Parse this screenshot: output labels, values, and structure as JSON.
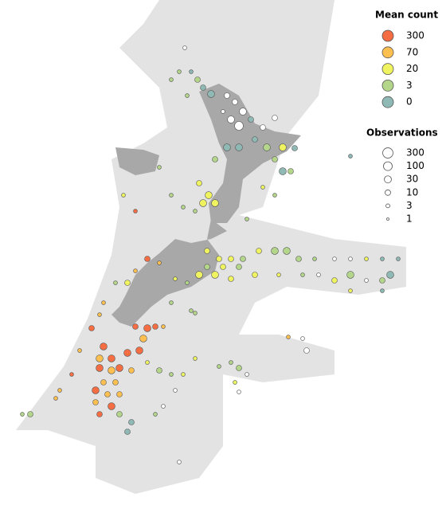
{
  "map": {
    "legend": {
      "mean_title": "Mean count",
      "mean_levels": [
        {
          "value": 300,
          "color": "#f46d43"
        },
        {
          "value": 70,
          "color": "#fdbf4f"
        },
        {
          "value": 20,
          "color": "#eef35f"
        },
        {
          "value": 3,
          "color": "#b3d68a"
        },
        {
          "value": 0,
          "color": "#8fb9b5"
        }
      ],
      "obs_title": "Observations",
      "obs_levels": [
        300,
        100,
        30,
        10,
        3,
        1
      ]
    },
    "points": [
      [
        285,
        120,
        null,
        10
      ],
      [
        295,
        128,
        null,
        10
      ],
      [
        305,
        140,
        null,
        30
      ],
      [
        290,
        150,
        null,
        30
      ],
      [
        300,
        158,
        null,
        100
      ],
      [
        315,
        150,
        0,
        10
      ],
      [
        330,
        160,
        null,
        10
      ],
      [
        345,
        148,
        null,
        10
      ],
      [
        280,
        140,
        null,
        3
      ],
      [
        240,
        90,
        0,
        3
      ],
      [
        232,
        60,
        null,
        3
      ],
      [
        255,
        110,
        0,
        10
      ],
      [
        265,
        118,
        0,
        30
      ],
      [
        248,
        100,
        3,
        10
      ],
      [
        225,
        90,
        3,
        3
      ],
      [
        215,
        100,
        3,
        3
      ],
      [
        235,
        120,
        3,
        3
      ],
      [
        320,
        175,
        0,
        10
      ],
      [
        335,
        185,
        3,
        30
      ],
      [
        355,
        185,
        20,
        30
      ],
      [
        370,
        186,
        0,
        10
      ],
      [
        345,
        200,
        3,
        10
      ],
      [
        355,
        215,
        0,
        30
      ],
      [
        365,
        215,
        3,
        10
      ],
      [
        300,
        185,
        0,
        30
      ],
      [
        285,
        185,
        0,
        30
      ],
      [
        270,
        200,
        3,
        10
      ],
      [
        440,
        196,
        0,
        3
      ],
      [
        250,
        230,
        20,
        10
      ],
      [
        262,
        245,
        20,
        30
      ],
      [
        270,
        255,
        20,
        30
      ],
      [
        255,
        255,
        20,
        30
      ],
      [
        245,
        265,
        3,
        3
      ],
      [
        230,
        260,
        3,
        3
      ],
      [
        215,
        245,
        3,
        3
      ],
      [
        200,
        210,
        3,
        3
      ],
      [
        155,
        245,
        20,
        3
      ],
      [
        170,
        265,
        300,
        3
      ],
      [
        330,
        235,
        20,
        3
      ],
      [
        345,
        245,
        3,
        3
      ],
      [
        310,
        275,
        3,
        3
      ],
      [
        260,
        315,
        20,
        10
      ],
      [
        275,
        325,
        20,
        10
      ],
      [
        290,
        325,
        20,
        10
      ],
      [
        305,
        325,
        3,
        10
      ],
      [
        325,
        315,
        20,
        10
      ],
      [
        345,
        315,
        3,
        30
      ],
      [
        360,
        315,
        3,
        30
      ],
      [
        375,
        325,
        3,
        10
      ],
      [
        395,
        325,
        3,
        3
      ],
      [
        420,
        325,
        null,
        3
      ],
      [
        440,
        325,
        null,
        3
      ],
      [
        460,
        325,
        20,
        3
      ],
      [
        480,
        325,
        0,
        3
      ],
      [
        500,
        325,
        0,
        3
      ],
      [
        250,
        345,
        20,
        30
      ],
      [
        270,
        345,
        20,
        30
      ],
      [
        290,
        350,
        20,
        10
      ],
      [
        320,
        345,
        20,
        10
      ],
      [
        350,
        345,
        20,
        3
      ],
      [
        380,
        345,
        3,
        3
      ],
      [
        400,
        345,
        null,
        3
      ],
      [
        420,
        352,
        20,
        10
      ],
      [
        440,
        345,
        3,
        30
      ],
      [
        460,
        352,
        null,
        3
      ],
      [
        480,
        352,
        3,
        10
      ],
      [
        490,
        345,
        0,
        30
      ],
      [
        480,
        365,
        0,
        3
      ],
      [
        440,
        365,
        20,
        3
      ],
      [
        260,
        335,
        3,
        10
      ],
      [
        280,
        335,
        20,
        10
      ],
      [
        300,
        335,
        3,
        10
      ],
      [
        185,
        325,
        300,
        10
      ],
      [
        200,
        330,
        70,
        3
      ],
      [
        170,
        340,
        70,
        3
      ],
      [
        160,
        355,
        20,
        10
      ],
      [
        145,
        355,
        3,
        3
      ],
      [
        130,
        380,
        70,
        3
      ],
      [
        125,
        395,
        70,
        3
      ],
      [
        115,
        412,
        300,
        10
      ],
      [
        170,
        410,
        300,
        10
      ],
      [
        185,
        412,
        300,
        30
      ],
      [
        195,
        410,
        300,
        10
      ],
      [
        205,
        410,
        70,
        3
      ],
      [
        180,
        425,
        70,
        30
      ],
      [
        175,
        440,
        300,
        30
      ],
      [
        160,
        443,
        300,
        30
      ],
      [
        130,
        435,
        300,
        30
      ],
      [
        125,
        450,
        70,
        30
      ],
      [
        140,
        450,
        300,
        30
      ],
      [
        150,
        462,
        300,
        30
      ],
      [
        125,
        462,
        300,
        30
      ],
      [
        140,
        465,
        70,
        30
      ],
      [
        165,
        465,
        70,
        10
      ],
      [
        130,
        480,
        70,
        10
      ],
      [
        145,
        480,
        70,
        10
      ],
      [
        120,
        490,
        300,
        30
      ],
      [
        135,
        495,
        70,
        10
      ],
      [
        150,
        495,
        70,
        10
      ],
      [
        120,
        505,
        70,
        10
      ],
      [
        140,
        510,
        300,
        30
      ],
      [
        125,
        520,
        300,
        10
      ],
      [
        150,
        520,
        3,
        10
      ],
      [
        165,
        530,
        0,
        10
      ],
      [
        160,
        542,
        0,
        10
      ],
      [
        90,
        470,
        300,
        3
      ],
      [
        75,
        490,
        70,
        3
      ],
      [
        70,
        500,
        70,
        3
      ],
      [
        38,
        520,
        3,
        10
      ],
      [
        28,
        520,
        3,
        3
      ],
      [
        100,
        440,
        70,
        3
      ],
      [
        185,
        455,
        20,
        3
      ],
      [
        200,
        465,
        3,
        10
      ],
      [
        215,
        470,
        3,
        3
      ],
      [
        230,
        470,
        20,
        3
      ],
      [
        245,
        450,
        20,
        3
      ],
      [
        275,
        460,
        3,
        3
      ],
      [
        290,
        455,
        3,
        3
      ],
      [
        300,
        462,
        3,
        10
      ],
      [
        295,
        480,
        20,
        3
      ],
      [
        300,
        492,
        null,
        3
      ],
      [
        195,
        520,
        3,
        3
      ],
      [
        205,
        510,
        null,
        3
      ],
      [
        220,
        490,
        null,
        3
      ],
      [
        362,
        423,
        70,
        3
      ],
      [
        380,
        425,
        null,
        3
      ],
      [
        385,
        440,
        null,
        10
      ],
      [
        225,
        580,
        null,
        3
      ],
      [
        310,
        470,
        null,
        3
      ],
      [
        240,
        390,
        3,
        3
      ],
      [
        245,
        393,
        3,
        3
      ],
      [
        215,
        380,
        3,
        3
      ],
      [
        220,
        350,
        20,
        3
      ],
      [
        235,
        355,
        3,
        3
      ]
    ]
  }
}
